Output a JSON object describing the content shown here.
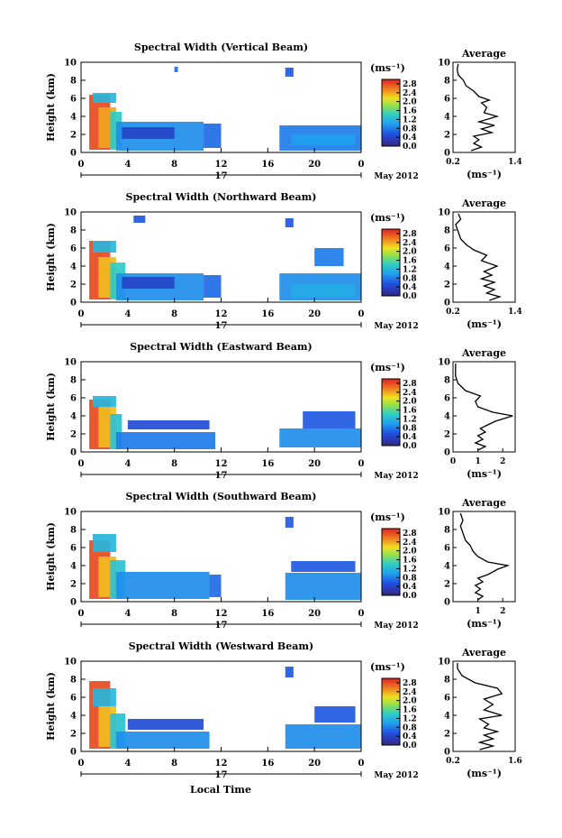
{
  "figure": {
    "xlabel": "Local Time",
    "month_label": "May 2012",
    "day_label": "17",
    "avg_title": "Average",
    "colorbar_unit": "(ms⁻¹)",
    "avg_xlabel": "(ms⁻¹)"
  },
  "chart_data": [
    {
      "type": "heatmap",
      "title": "Spectral Width (Vertical Beam)",
      "ylabel": "Height (km)",
      "xlim": [
        0,
        24
      ],
      "ylim": [
        0,
        10
      ],
      "x_ticks": [
        "0",
        "4",
        "8",
        "12",
        "16",
        "20",
        "0"
      ],
      "y_ticks": [
        "0",
        "2",
        "4",
        "6",
        "8",
        "10"
      ],
      "colorbar": {
        "ticks": [
          "0.0",
          "0.4",
          "0.8",
          "1.2",
          "1.6",
          "2.0",
          "2.4",
          "2.8"
        ],
        "range": [
          0,
          3.0
        ]
      },
      "average": {
        "xlim": [
          0.2,
          1.4
        ],
        "x_ticks": [
          "0.2",
          "1.4"
        ],
        "profile": [
          [
            0.55,
            0.2
          ],
          [
            0.75,
            0.6
          ],
          [
            0.6,
            1.0
          ],
          [
            0.7,
            1.4
          ],
          [
            0.6,
            1.8
          ],
          [
            0.95,
            2.2
          ],
          [
            0.75,
            2.6
          ],
          [
            1.0,
            3.0
          ],
          [
            0.7,
            3.4
          ],
          [
            1.05,
            4.0
          ],
          [
            0.8,
            4.4
          ],
          [
            0.85,
            5.0
          ],
          [
            0.75,
            5.5
          ],
          [
            0.9,
            5.8
          ],
          [
            0.7,
            6.2
          ],
          [
            0.6,
            6.8
          ],
          [
            0.45,
            7.4
          ],
          [
            0.4,
            8.0
          ],
          [
            0.3,
            8.6
          ],
          [
            0.28,
            9.2
          ],
          [
            0.3,
            9.8
          ]
        ]
      },
      "cells": [
        {
          "x": [
            0.7,
            2.5
          ],
          "y": [
            0.3,
            6.4
          ],
          "v": 2.8
        },
        {
          "x": [
            1.5,
            3.0
          ],
          "y": [
            0.5,
            5.0
          ],
          "v": 2.4
        },
        {
          "x": [
            2.5,
            3.5
          ],
          "y": [
            0.3,
            4.5
          ],
          "v": 1.4
        },
        {
          "x": [
            3.0,
            10.5
          ],
          "y": [
            0.2,
            3.4
          ],
          "v": 0.9
        },
        {
          "x": [
            10.5,
            12.0
          ],
          "y": [
            0.5,
            3.2
          ],
          "v": 0.7
        },
        {
          "x": [
            17.0,
            24.0
          ],
          "y": [
            0.2,
            3.0
          ],
          "v": 0.8
        },
        {
          "x": [
            3.5,
            8.0
          ],
          "y": [
            1.5,
            2.8
          ],
          "v": 0.4
        },
        {
          "x": [
            18.0,
            23.5
          ],
          "y": [
            0.8,
            2.0
          ],
          "v": 1.0
        },
        {
          "x": [
            8.0,
            8.3
          ],
          "y": [
            8.9,
            9.5
          ],
          "v": 0.7
        },
        {
          "x": [
            17.5,
            18.2
          ],
          "y": [
            8.4,
            9.4
          ],
          "v": 0.6
        },
        {
          "x": [
            1.0,
            3.0
          ],
          "y": [
            5.5,
            6.6
          ],
          "v": 1.2
        }
      ]
    },
    {
      "type": "heatmap",
      "title": "Spectral Width (Northward Beam)",
      "ylabel": "Height (km)",
      "xlim": [
        0,
        24
      ],
      "ylim": [
        0,
        10
      ],
      "x_ticks": [
        "0",
        "4",
        "8",
        "12",
        "16",
        "20",
        "0"
      ],
      "y_ticks": [
        "0",
        "2",
        "4",
        "6",
        "8",
        "10"
      ],
      "colorbar": {
        "ticks": [
          "0.0",
          "0.4",
          "0.8",
          "1.2",
          "1.6",
          "2.0",
          "2.4",
          "2.8"
        ],
        "range": [
          0,
          3.0
        ]
      },
      "average": {
        "xlim": [
          0.2,
          1.4
        ],
        "x_ticks": [
          "0.2",
          "1.4"
        ],
        "profile": [
          [
            0.9,
            0.2
          ],
          [
            1.1,
            0.6
          ],
          [
            0.85,
            1.0
          ],
          [
            1.0,
            1.4
          ],
          [
            0.8,
            1.8
          ],
          [
            1.0,
            2.2
          ],
          [
            0.75,
            2.6
          ],
          [
            0.95,
            3.0
          ],
          [
            0.8,
            3.4
          ],
          [
            1.05,
            4.0
          ],
          [
            0.75,
            4.6
          ],
          [
            0.85,
            5.2
          ],
          [
            0.6,
            5.8
          ],
          [
            0.45,
            6.4
          ],
          [
            0.35,
            7.0
          ],
          [
            0.3,
            7.8
          ],
          [
            0.25,
            8.6
          ],
          [
            0.35,
            9.2
          ],
          [
            0.3,
            9.8
          ]
        ]
      },
      "cells": [
        {
          "x": [
            0.7,
            2.5
          ],
          "y": [
            0.3,
            6.8
          ],
          "v": 2.8
        },
        {
          "x": [
            1.5,
            3.0
          ],
          "y": [
            0.5,
            5.0
          ],
          "v": 2.3
        },
        {
          "x": [
            2.5,
            3.8
          ],
          "y": [
            0.3,
            4.4
          ],
          "v": 1.4
        },
        {
          "x": [
            3.0,
            10.5
          ],
          "y": [
            0.2,
            3.2
          ],
          "v": 0.9
        },
        {
          "x": [
            10.5,
            12.0
          ],
          "y": [
            0.5,
            3.0
          ],
          "v": 0.7
        },
        {
          "x": [
            17.0,
            24.0
          ],
          "y": [
            0.2,
            3.2
          ],
          "v": 0.9
        },
        {
          "x": [
            3.5,
            8.0
          ],
          "y": [
            1.5,
            2.8
          ],
          "v": 0.4
        },
        {
          "x": [
            18.0,
            23.5
          ],
          "y": [
            0.5,
            2.0
          ],
          "v": 1.1
        },
        {
          "x": [
            4.5,
            5.5
          ],
          "y": [
            8.8,
            9.6
          ],
          "v": 0.6
        },
        {
          "x": [
            17.5,
            18.2
          ],
          "y": [
            8.3,
            9.3
          ],
          "v": 0.6
        },
        {
          "x": [
            20.0,
            22.5
          ],
          "y": [
            4.0,
            6.0
          ],
          "v": 0.8
        },
        {
          "x": [
            1.0,
            3.0
          ],
          "y": [
            5.5,
            6.8
          ],
          "v": 1.2
        }
      ]
    },
    {
      "type": "heatmap",
      "title": "Spectral Width (Eastward Beam)",
      "ylabel": "Height (km)",
      "xlim": [
        0,
        24
      ],
      "ylim": [
        0,
        10
      ],
      "x_ticks": [
        "0",
        "4",
        "8",
        "12",
        "16",
        "20",
        "0"
      ],
      "y_ticks": [
        "0",
        "2",
        "4",
        "6",
        "8",
        "10"
      ],
      "colorbar": {
        "ticks": [
          "0.0",
          "0.4",
          "0.8",
          "1.2",
          "1.6",
          "2.0",
          "2.4",
          "2.8"
        ],
        "range": [
          0,
          3.0
        ]
      },
      "average": {
        "xlim": [
          0,
          2.5
        ],
        "x_ticks": [
          "0",
          "1",
          "2"
        ],
        "profile": [
          [
            1.0,
            0.2
          ],
          [
            1.3,
            0.6
          ],
          [
            0.9,
            1.0
          ],
          [
            1.2,
            1.4
          ],
          [
            1.0,
            1.8
          ],
          [
            1.3,
            2.2
          ],
          [
            1.1,
            2.6
          ],
          [
            1.4,
            3.0
          ],
          [
            1.7,
            3.4
          ],
          [
            2.4,
            4.0
          ],
          [
            1.6,
            4.4
          ],
          [
            1.0,
            5.0
          ],
          [
            0.9,
            5.6
          ],
          [
            1.1,
            6.2
          ],
          [
            0.5,
            6.8
          ],
          [
            0.2,
            7.6
          ],
          [
            0.1,
            8.4
          ],
          [
            0.1,
            9.2
          ],
          [
            0.1,
            9.8
          ]
        ]
      },
      "cells": [
        {
          "x": [
            0.7,
            2.5
          ],
          "y": [
            0.3,
            5.8
          ],
          "v": 2.8
        },
        {
          "x": [
            1.5,
            3.0
          ],
          "y": [
            0.5,
            5.0
          ],
          "v": 2.3
        },
        {
          "x": [
            2.5,
            3.5
          ],
          "y": [
            0.3,
            4.2
          ],
          "v": 1.3
        },
        {
          "x": [
            3.0,
            11.5
          ],
          "y": [
            0.3,
            2.2
          ],
          "v": 0.8
        },
        {
          "x": [
            4.0,
            11.0
          ],
          "y": [
            2.5,
            3.5
          ],
          "v": 0.5
        },
        {
          "x": [
            17.0,
            24.0
          ],
          "y": [
            0.5,
            2.6
          ],
          "v": 0.9
        },
        {
          "x": [
            19.0,
            23.5
          ],
          "y": [
            2.6,
            4.5
          ],
          "v": 0.6
        },
        {
          "x": [
            1.0,
            3.0
          ],
          "y": [
            5.0,
            6.2
          ],
          "v": 1.2
        }
      ]
    },
    {
      "type": "heatmap",
      "title": "Spectral Width (Southward Beam)",
      "ylabel": "Height (km)",
      "xlim": [
        0,
        24
      ],
      "ylim": [
        0,
        10
      ],
      "x_ticks": [
        "0",
        "4",
        "8",
        "12",
        "16",
        "20",
        "0"
      ],
      "y_ticks": [
        "0",
        "2",
        "4",
        "6",
        "8",
        "10"
      ],
      "colorbar": {
        "ticks": [
          "0.0",
          "0.4",
          "0.8",
          "1.2",
          "1.6",
          "2.0",
          "2.4",
          "2.8"
        ],
        "range": [
          0,
          3.0
        ]
      },
      "average": {
        "xlim": [
          0,
          2.5
        ],
        "x_ticks": [
          "1",
          "2"
        ],
        "profile": [
          [
            1.0,
            0.2
          ],
          [
            1.2,
            0.6
          ],
          [
            0.9,
            1.0
          ],
          [
            1.1,
            1.4
          ],
          [
            0.9,
            1.8
          ],
          [
            1.2,
            2.2
          ],
          [
            1.0,
            2.6
          ],
          [
            1.4,
            3.0
          ],
          [
            1.8,
            3.6
          ],
          [
            2.2,
            4.0
          ],
          [
            1.4,
            4.4
          ],
          [
            1.0,
            5.0
          ],
          [
            0.8,
            5.6
          ],
          [
            0.7,
            6.2
          ],
          [
            0.5,
            6.8
          ],
          [
            0.4,
            7.6
          ],
          [
            0.3,
            8.4
          ],
          [
            0.4,
            9.0
          ],
          [
            0.3,
            9.8
          ]
        ]
      },
      "cells": [
        {
          "x": [
            0.7,
            2.5
          ],
          "y": [
            0.3,
            6.8
          ],
          "v": 2.8
        },
        {
          "x": [
            1.5,
            3.0
          ],
          "y": [
            0.5,
            5.0
          ],
          "v": 2.3
        },
        {
          "x": [
            2.5,
            3.8
          ],
          "y": [
            0.3,
            4.6
          ],
          "v": 1.3
        },
        {
          "x": [
            3.0,
            11.0
          ],
          "y": [
            0.3,
            3.3
          ],
          "v": 0.9
        },
        {
          "x": [
            11.0,
            12.0
          ],
          "y": [
            0.5,
            3.0
          ],
          "v": 0.7
        },
        {
          "x": [
            17.5,
            24.0
          ],
          "y": [
            0.2,
            3.2
          ],
          "v": 0.9
        },
        {
          "x": [
            18.0,
            23.5
          ],
          "y": [
            3.3,
            4.5
          ],
          "v": 0.6
        },
        {
          "x": [
            1.0,
            3.0
          ],
          "y": [
            5.5,
            7.5
          ],
          "v": 1.2
        },
        {
          "x": [
            17.5,
            18.2
          ],
          "y": [
            8.2,
            9.4
          ],
          "v": 0.6
        }
      ]
    },
    {
      "type": "heatmap",
      "title": "Spectral Width (Westward Beam)",
      "ylabel": "Height (km)",
      "xlim": [
        0,
        24
      ],
      "ylim": [
        0,
        10
      ],
      "x_ticks": [
        "0",
        "4",
        "8",
        "12",
        "16",
        "20",
        "0"
      ],
      "y_ticks": [
        "0",
        "2",
        "4",
        "6",
        "8",
        "10"
      ],
      "colorbar": {
        "ticks": [
          "0.0",
          "0.4",
          "0.8",
          "1.2",
          "1.6",
          "2.0",
          "2.4",
          "2.8"
        ],
        "range": [
          0,
          3.0
        ]
      },
      "average": {
        "xlim": [
          0.2,
          1.6
        ],
        "x_ticks": [
          "0.2",
          "1.6"
        ],
        "profile": [
          [
            0.8,
            0.2
          ],
          [
            1.1,
            0.6
          ],
          [
            0.8,
            1.0
          ],
          [
            1.1,
            1.4
          ],
          [
            0.9,
            1.8
          ],
          [
            1.2,
            2.2
          ],
          [
            0.9,
            2.6
          ],
          [
            1.0,
            3.0
          ],
          [
            0.8,
            3.6
          ],
          [
            1.3,
            4.0
          ],
          [
            0.9,
            4.6
          ],
          [
            1.1,
            5.2
          ],
          [
            0.9,
            5.8
          ],
          [
            1.3,
            6.4
          ],
          [
            1.2,
            7.0
          ],
          [
            0.7,
            7.6
          ],
          [
            0.4,
            8.4
          ],
          [
            0.3,
            9.2
          ],
          [
            0.3,
            9.8
          ]
        ]
      },
      "cells": [
        {
          "x": [
            0.7,
            2.5
          ],
          "y": [
            0.3,
            7.8
          ],
          "v": 2.8
        },
        {
          "x": [
            1.5,
            3.0
          ],
          "y": [
            0.5,
            5.0
          ],
          "v": 2.3
        },
        {
          "x": [
            2.5,
            3.8
          ],
          "y": [
            0.3,
            4.2
          ],
          "v": 1.3
        },
        {
          "x": [
            3.0,
            11.0
          ],
          "y": [
            0.3,
            2.2
          ],
          "v": 0.9
        },
        {
          "x": [
            4.0,
            10.5
          ],
          "y": [
            2.4,
            3.6
          ],
          "v": 0.5
        },
        {
          "x": [
            17.5,
            24.0
          ],
          "y": [
            0.3,
            3.0
          ],
          "v": 0.9
        },
        {
          "x": [
            20.0,
            23.5
          ],
          "y": [
            3.2,
            5.0
          ],
          "v": 0.6
        },
        {
          "x": [
            1.0,
            3.0
          ],
          "y": [
            5.0,
            7.0
          ],
          "v": 1.2
        },
        {
          "x": [
            17.5,
            18.2
          ],
          "y": [
            8.2,
            9.4
          ],
          "v": 0.6
        }
      ]
    }
  ]
}
